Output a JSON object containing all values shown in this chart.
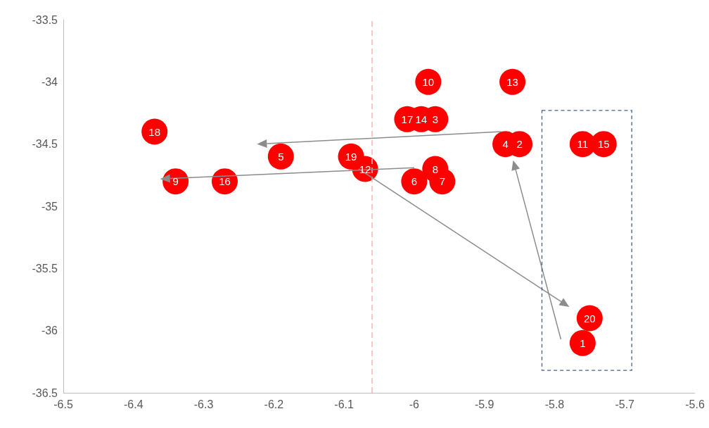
{
  "chart_data": {
    "type": "scatter",
    "x": [
      -5.76,
      -5.85,
      -5.97,
      -5.87,
      -6.19,
      -6.0,
      -5.96,
      -5.97,
      -6.34,
      -5.98,
      -5.76,
      -6.07,
      -5.86,
      -5.99,
      -5.73,
      -6.27,
      -6.01,
      -6.37,
      -6.09,
      -5.75
    ],
    "values": [
      -36.1,
      -34.5,
      -34.3,
      -34.5,
      -34.6,
      -34.8,
      -34.8,
      -34.7,
      -34.8,
      -34.0,
      -34.5,
      -34.7,
      -34.0,
      -34.3,
      -34.5,
      -34.8,
      -34.3,
      -34.4,
      -34.6,
      -35.9
    ],
    "annotations": [
      {
        "text": "1",
        "x": -5.76,
        "y": -36.1
      },
      {
        "text": "2",
        "x": -5.85,
        "y": -34.5
      },
      {
        "text": "3",
        "x": -5.97,
        "y": -34.3
      },
      {
        "text": "4",
        "x": -5.87,
        "y": -34.5
      },
      {
        "text": "5",
        "x": -6.19,
        "y": -34.6
      },
      {
        "text": "6",
        "x": -6.0,
        "y": -34.8
      },
      {
        "text": "7",
        "x": -5.96,
        "y": -34.8
      },
      {
        "text": "8",
        "x": -5.97,
        "y": -34.7
      },
      {
        "text": "9",
        "x": -6.34,
        "y": -34.8
      },
      {
        "text": "10",
        "x": -5.98,
        "y": -34.0
      },
      {
        "text": "11",
        "x": -5.76,
        "y": -34.5
      },
      {
        "text": "12",
        "x": -6.07,
        "y": -34.7
      },
      {
        "text": "13",
        "x": -5.86,
        "y": -34.0
      },
      {
        "text": "14",
        "x": -5.99,
        "y": -34.3
      },
      {
        "text": "15",
        "x": -5.73,
        "y": -34.5
      },
      {
        "text": "16",
        "x": -6.27,
        "y": -34.8
      },
      {
        "text": "17",
        "x": -6.01,
        "y": -34.3
      },
      {
        "text": "18",
        "x": -6.37,
        "y": -34.4
      },
      {
        "text": "19",
        "x": -6.09,
        "y": -34.6
      },
      {
        "text": "20",
        "x": -5.75,
        "y": -35.9
      }
    ],
    "color": "#ff0000",
    "marker": "circle",
    "xlim": [
      -6.5,
      -5.6
    ],
    "xticks": [
      -6.5,
      -6.4,
      -6.3,
      -6.2,
      -6.1,
      -6,
      -5.9,
      -5.8,
      -5.7,
      -5.6
    ],
    "ylim": [
      -36.5,
      -33.5
    ],
    "yticks": [
      -36.5,
      -36,
      -35.5,
      -35,
      -34.5,
      -34,
      -33.5
    ],
    "grid": false,
    "ref_lines": [
      {
        "axis": "x",
        "value": -6.06,
        "label": null,
        "color": "#f4b6b6",
        "line_style": "dashed"
      }
    ]
  }
}
